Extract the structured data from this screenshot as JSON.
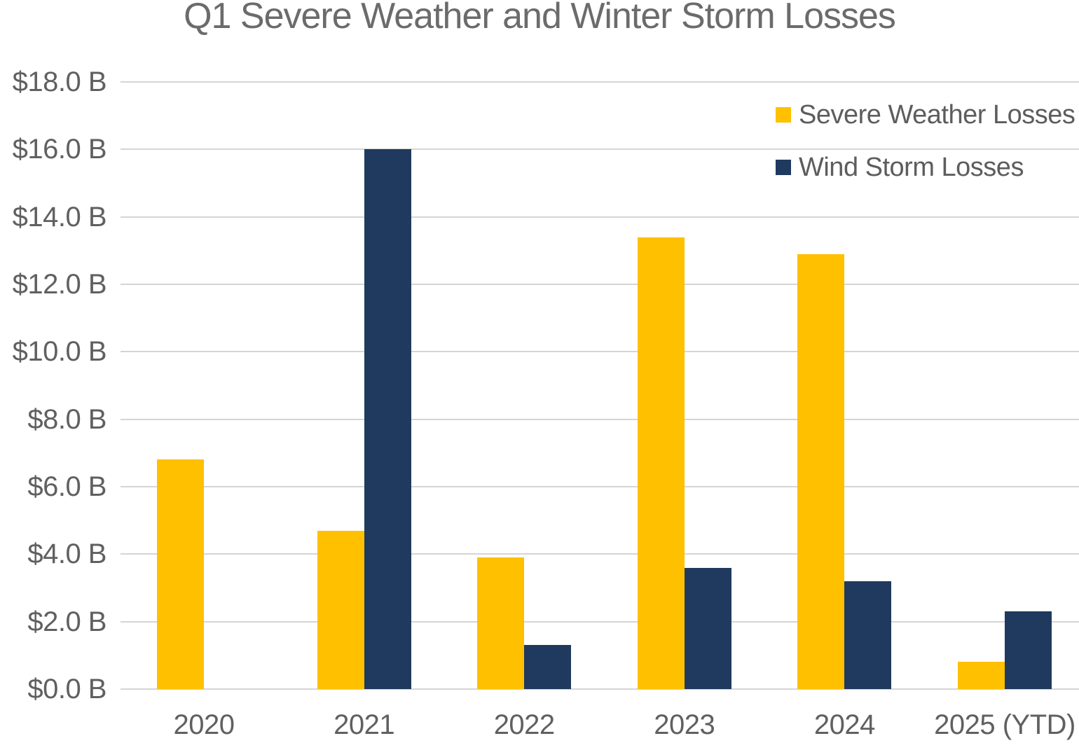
{
  "chart_data": {
    "type": "bar",
    "title": "Q1 Severe Weather and Winter Storm Losses",
    "categories": [
      "2020",
      "2021",
      "2022",
      "2023",
      "2024",
      "2025 (YTD)"
    ],
    "series": [
      {
        "name": "Severe Weather Losses",
        "color": "#FFC000",
        "values": [
          6.8,
          4.7,
          3.9,
          13.4,
          12.9,
          0.8
        ]
      },
      {
        "name": "Wind Storm Losses",
        "color": "#1F3A5E",
        "values": [
          0,
          16.0,
          1.3,
          3.6,
          3.2,
          2.3
        ]
      }
    ],
    "xlabel": "",
    "ylabel": "",
    "ylim": [
      0,
      18
    ],
    "y_tick_step": 2,
    "y_tick_labels_bottom_up": [
      "$0.0 B",
      "$2.0 B",
      "$4.0 B",
      "$6.0 B",
      "$8.0 B",
      "$10.0 B",
      "$12.0 B",
      "$14.0 B",
      "$16.0 B",
      "$18.0 B"
    ],
    "values_unit": "B",
    "grid": true,
    "legend_position": "top-right",
    "gridline_color": "#d5d5d5",
    "title_color": "#6b6b6b",
    "axis_text_color": "#606060"
  }
}
